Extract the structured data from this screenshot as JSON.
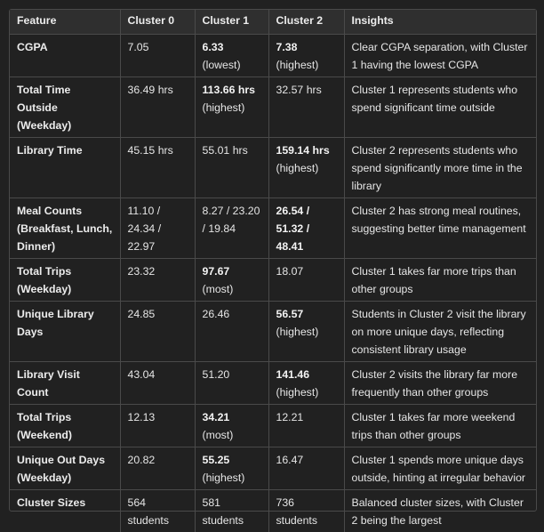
{
  "table": {
    "headers": [
      "Feature",
      "Cluster 0",
      "Cluster 1",
      "Cluster 2",
      "Insights"
    ],
    "rows": [
      {
        "feature": "CGPA",
        "c0": "7.05",
        "c1": "6.33",
        "c1_note": "(lowest)",
        "c2": "7.38",
        "c2_note": "(highest)",
        "insight": "Clear CGPA separation, with Cluster 1 having the lowest CGPA"
      },
      {
        "feature": "Total Time Outside (Weekday)",
        "c0": "36.49 hrs",
        "c1": "113.66 hrs",
        "c1_note": "(highest)",
        "c2": "32.57 hrs",
        "insight": "Cluster 1 represents students who spend significant time outside"
      },
      {
        "feature": "Library Time",
        "c0": "45.15 hrs",
        "c1": "55.01 hrs",
        "c2": "159.14 hrs",
        "c2_note": "(highest)",
        "insight": "Cluster 2 represents students who spend significantly more time in the library"
      },
      {
        "feature": "Meal Counts (Breakfast, Lunch, Dinner)",
        "c0": "11.10 / 24.34 / 22.97",
        "c1": "8.27 / 23.20 / 19.84",
        "c2": "26.54 / 51.32 / 48.41",
        "insight": "Cluster 2 has strong meal routines, suggesting better time management"
      },
      {
        "feature": "Total Trips (Weekday)",
        "c0": "23.32",
        "c1": "97.67",
        "c1_note": "(most)",
        "c2": "18.07",
        "insight": "Cluster 1 takes far more trips than other groups"
      },
      {
        "feature": "Unique Library Days",
        "c0": "24.85",
        "c1": "26.46",
        "c2": "56.57",
        "c2_note": "(highest)",
        "insight": "Students in Cluster 2 visit the library on more unique days, reflecting consistent library usage"
      },
      {
        "feature": "Library Visit Count",
        "c0": "43.04",
        "c1": "51.20",
        "c2": "141.46",
        "c2_note": "(highest)",
        "insight": "Cluster 2 visits the library far more frequently than other groups"
      },
      {
        "feature": "Total Trips (Weekend)",
        "c0": "12.13",
        "c1": "34.21",
        "c1_note": "(most)",
        "c2": "12.21",
        "insight": "Cluster 1 takes far more weekend trips than other groups"
      },
      {
        "feature": "Unique Out Days (Weekday)",
        "c0": "20.82",
        "c1": "55.25",
        "c1_note": "(highest)",
        "c2": "16.47",
        "insight": "Cluster 1 spends more unique days outside, hinting at irregular behavior"
      },
      {
        "feature": "Cluster Sizes",
        "c0": "564 students",
        "c1": "581 students",
        "c2": "736 students",
        "insight": "Balanced cluster sizes, with Cluster 2 being the largest"
      }
    ]
  }
}
